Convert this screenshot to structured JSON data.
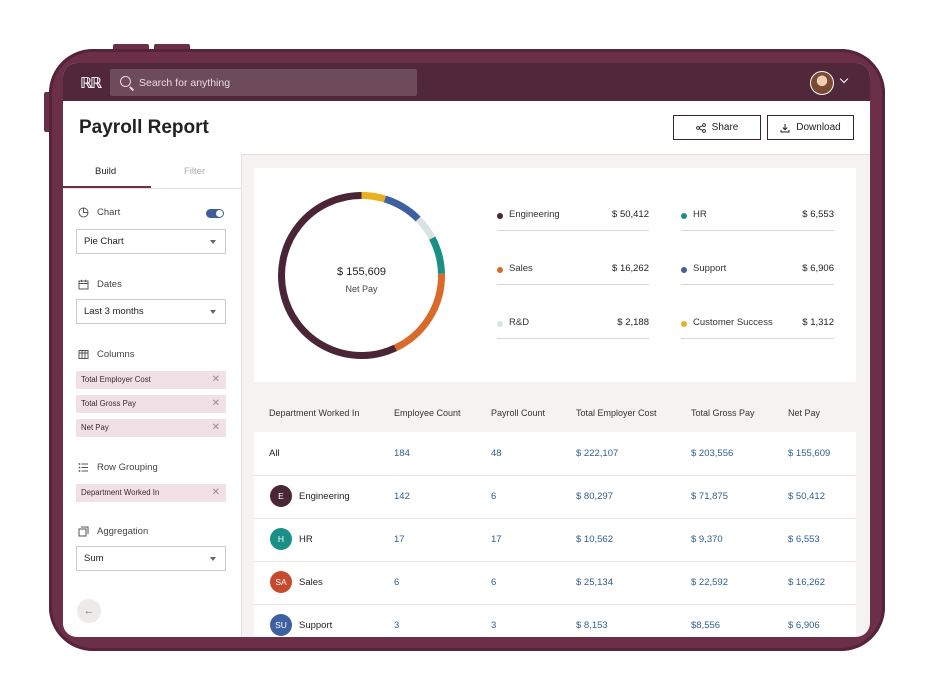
{
  "search": {
    "placeholder": "Search for anything"
  },
  "header": {
    "title": "Payroll Report",
    "share_label": "Share",
    "download_label": "Download"
  },
  "sidebar": {
    "tabs": [
      "Build",
      "Filter"
    ],
    "chart": {
      "label": "Chart",
      "selected": "Pie Chart",
      "toggle_on": true
    },
    "dates": {
      "label": "Dates",
      "selected": "Last 3 months"
    },
    "columns": {
      "label": "Columns",
      "chips": [
        "Total Employer Cost",
        "Total Gross Pay",
        "Net Pay"
      ]
    },
    "row_grouping": {
      "label": "Row Grouping",
      "chips": [
        "Department Worked In"
      ]
    },
    "aggregation": {
      "label": "Aggregation",
      "selected": "Sum"
    }
  },
  "summary": {
    "total_value": "$ 155,609",
    "total_label": "Net Pay",
    "legend": [
      {
        "name": "Engineering",
        "value": "$ 50,412",
        "amount": 50412,
        "color": "#4a2535"
      },
      {
        "name": "HR",
        "value": "$ 6,553",
        "amount": 6553,
        "color": "#1a8f86"
      },
      {
        "name": "Sales",
        "value": "$ 16,262",
        "amount": 16262,
        "color": "#d96a2a"
      },
      {
        "name": "Support",
        "value": "$ 6,906",
        "amount": 6906,
        "color": "#3e60a0"
      },
      {
        "name": "R&D",
        "value": "$ 2,188",
        "amount": 2188,
        "color": "#d9e3e1"
      },
      {
        "name": "Customer Success",
        "value": "$ 1,312",
        "amount": 1312,
        "color": "#e8b11f"
      }
    ]
  },
  "table": {
    "headers": [
      "Department Worked In",
      "Employee Count",
      "Payroll Count",
      "Total Employer Cost",
      "Total Gross Pay",
      "Net Pay"
    ],
    "rows": [
      {
        "initials": "",
        "dept": "All",
        "employees": "184",
        "payroll": "48",
        "cost": "$ 222,107",
        "gross": "$ 203,556",
        "net": "$ 155,609",
        "color": ""
      },
      {
        "initials": "E",
        "dept": "Engineering",
        "employees": "142",
        "payroll": "6",
        "cost": "$ 80,297",
        "gross": "$ 71,875",
        "net": "$ 50,412",
        "color": "#4a2535"
      },
      {
        "initials": "H",
        "dept": "HR",
        "employees": "17",
        "payroll": "17",
        "cost": "$ 10,562",
        "gross": "$ 9,370",
        "net": "$ 6,553",
        "color": "#1a8f86"
      },
      {
        "initials": "SA",
        "dept": "Sales",
        "employees": "6",
        "payroll": "6",
        "cost": "$ 25,134",
        "gross": "$ 22,592",
        "net": "$ 16,262",
        "color": "#c84a2e"
      },
      {
        "initials": "SU",
        "dept": "Support",
        "employees": "3",
        "payroll": "3",
        "cost": "$ 8,153",
        "gross": "$8,556",
        "net": "$ 6,906",
        "color": "#3e60a0"
      }
    ]
  }
}
